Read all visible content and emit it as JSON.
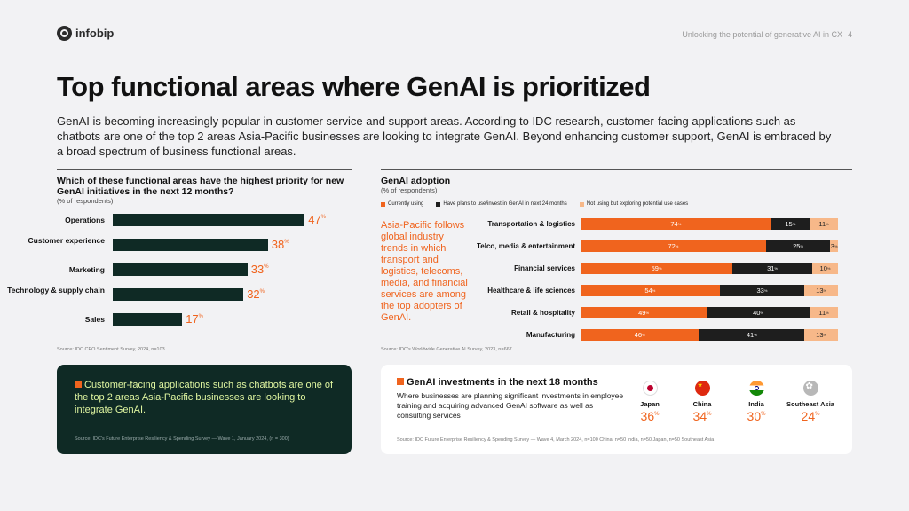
{
  "header": {
    "brand": "infobip",
    "doc_title": "Unlocking the potential of generative AI in CX",
    "page_number": "4"
  },
  "title": "Top functional areas where GenAI is prioritized",
  "intro": "GenAI is becoming increasingly popular in customer service and support areas. According to IDC research, customer-facing applications such as chatbots are one of the top 2 areas Asia-Pacific businesses are looking to integrate GenAI. Beyond enhancing customer support, GenAI is embraced by a broad spectrum of business functional areas.",
  "colors": {
    "dark_green": "#0f2a25",
    "orange": "#f0641e",
    "black": "#1e1e1e",
    "peach": "#f7b889",
    "lime": "#dff5a0"
  },
  "chart_data": [
    {
      "type": "bar",
      "orientation": "horizontal",
      "title": "Which of these functional areas have the highest priority for new GenAI initiatives in the next 12 months?",
      "subtitle": "(% of respondents)",
      "categories": [
        "Operations",
        "Customer experience",
        "Marketing",
        "Technology & supply chain",
        "Sales"
      ],
      "values": [
        47,
        38,
        33,
        32,
        17
      ],
      "unit": "%",
      "source": "Source: IDC CEO Sentiment Survey, 2024, n=103"
    },
    {
      "type": "bar",
      "orientation": "horizontal",
      "stacked": true,
      "title": "GenAI adoption",
      "subtitle": "(% of respondents)",
      "categories": [
        "Transportation & logistics",
        "Telco, media & entertainment",
        "Financial services",
        "Healthcare & life sciences",
        "Retail & hospitality",
        "Manufacturing"
      ],
      "series": [
        {
          "name": "Currently using",
          "values": [
            74,
            72,
            59,
            54,
            49,
            46
          ]
        },
        {
          "name": "Have plans to use/invest in GenAI in next 24 months",
          "values": [
            15,
            25,
            31,
            33,
            40,
            41
          ]
        },
        {
          "name": "Not using but exploring potential use cases",
          "values": [
            11,
            3,
            10,
            13,
            11,
            13
          ]
        }
      ],
      "unit": "%",
      "callout": "Asia-Pacific follows global industry trends in which transport and logistics, telecoms, media, and financial services are among the top adopters of GenAI.",
      "source": "Source: IDC's Worldwide Generative AI Survey, 2023, n=667"
    },
    {
      "type": "table",
      "title": "GenAI investments in the next 18 months",
      "description": "Where businesses are planning significant investments in employee training and acquiring advanced GenAI software as well as consulting services",
      "categories": [
        "Japan",
        "China",
        "India",
        "Southeast Asia"
      ],
      "values": [
        36,
        34,
        30,
        24
      ],
      "unit": "%",
      "source": "Source: IDC Future Enterprise Resiliency & Spending Survey — Wave 4, March 2024, n=100 China, n=50 India, n=50 Japan, n=50 Southeast Asia"
    }
  ],
  "highlight_card": {
    "text": "Customer-facing applications such as chatbots are one of the top 2 areas Asia-Pacific businesses are looking to integrate GenAI.",
    "source": "Source: IDC's Future Enterprise Resiliency & Spending Survey — Wave 1, January 2024, (n = 300)"
  }
}
